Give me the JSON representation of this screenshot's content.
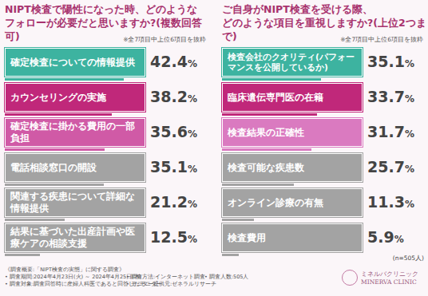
{
  "chart_data": [
    {
      "type": "bar",
      "orientation": "horizontal",
      "title": "NIPT検査で陽性になった時、どのような\nフォローが必要だと思いますか?(複数回答可)",
      "subtitle": "※全7項目中上位6項目を抜粋",
      "categories": [
        "確定検査についての情報提供",
        "カウンセリングの実施",
        "確定検査に掛かる費用の一部負担",
        "電話相談窓口の開設",
        "関連する疾患について詳細な情報提供",
        "結果に基づいた出産計画や医療ケアの相談支援"
      ],
      "values": [
        42.4,
        38.2,
        35.6,
        35.1,
        21.2,
        12.5
      ],
      "value_labels": [
        "42.4%",
        "38.2%",
        "35.6%",
        "35.1%",
        "21.2%",
        "12.5%"
      ],
      "colors": [
        "#3db3a0",
        "#c0287a",
        "#d05aa6",
        "#a3a3a3",
        "#a3a3a3",
        "#a3a3a3"
      ],
      "xlim": [
        0,
        50
      ],
      "data_labels": true,
      "tick_labels": "y",
      "grid": false
    },
    {
      "type": "bar",
      "orientation": "horizontal",
      "title": "ご自身がNIPT検査を受ける際、\nどのような項目を重視しますか?(上位2つまで)",
      "subtitle": "※全7項目中上位6項目を抜粋",
      "categories": [
        "検査会社のクオリティ(パフォーマンスを公開しているか)",
        "臨床遺伝専門医の在籍",
        "検査結果の正確性",
        "検査可能な疾患数",
        "オンライン診療の有無",
        "検査費用"
      ],
      "values": [
        35.1,
        33.7,
        31.7,
        25.7,
        11.3,
        5.9
      ],
      "value_labels": [
        "35.1%",
        "33.7%",
        "31.7%",
        "25.7%",
        "11.3%",
        "5.9%"
      ],
      "colors": [
        "#3db3a0",
        "#c0287a",
        "#da7ac0",
        "#a3a3a3",
        "#a3a3a3",
        "#a3a3a3"
      ],
      "xlim": [
        0,
        50
      ],
      "data_labels": true,
      "tick_labels": "y",
      "grid": false
    }
  ],
  "sample_size": "(n=505人)",
  "footer": {
    "heading": "《調査概要:「NIPT検査の実態」に関する調査》",
    "items": [
      "• 調査期間:2024年4月23日(火) ～ 2024年4月25日(木)",
      "• 調査方法:インターネット調査",
      "• 調査人数:505人",
      "• 調査対象:調査回答時に産婦人科医であると回答したモニター",
      "• モニター提供元:ゼネラルリサーチ"
    ]
  },
  "logo": {
    "name_ja": "ミネルバクリニック",
    "name_en": "MINERVA CLINIC"
  }
}
